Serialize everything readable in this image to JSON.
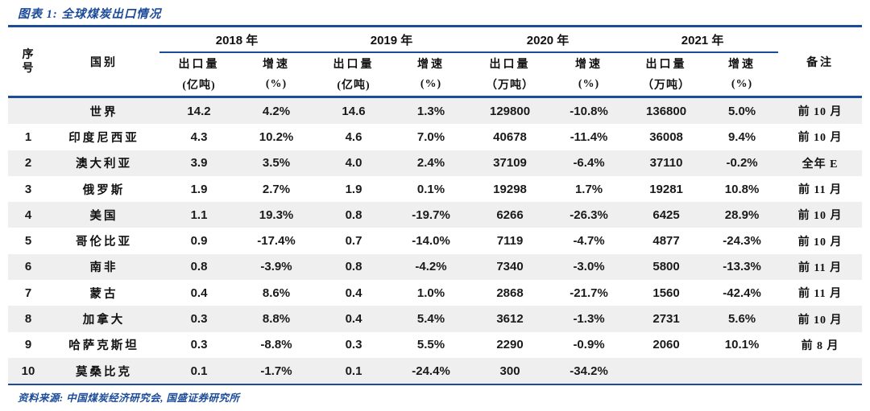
{
  "figure": {
    "title": "图表 1: 全球煤炭出口情况",
    "source": "资料来源: 中国煤炭经济研究会, 国盛证券研究所"
  },
  "colors": {
    "navy": "#1B4B99",
    "stripe": "#EFEFEF",
    "number_text": "#1A1A1A"
  },
  "chart_data": {
    "type": "table",
    "title": "图表 1: 全球煤炭出口情况",
    "header": {
      "seq_lines": [
        "序",
        "号"
      ],
      "country": "国别",
      "remark": "备注",
      "year_groups": [
        {
          "year": "2018 年",
          "sub": [
            "出口量",
            "增速"
          ],
          "units": [
            "(亿吨)",
            "(%)"
          ]
        },
        {
          "year": "2019 年",
          "sub": [
            "出口量",
            "增速"
          ],
          "units": [
            "(亿吨)",
            "(%)"
          ]
        },
        {
          "year": "2020 年",
          "sub": [
            "出口量",
            "增速"
          ],
          "units": [
            "（万吨）",
            "(%)"
          ]
        },
        {
          "year": "2021 年",
          "sub": [
            "出口量",
            "增速"
          ],
          "units": [
            "（万吨）",
            "(%)"
          ]
        }
      ]
    },
    "rows": [
      {
        "seq": "",
        "country": "世界",
        "values": [
          "14.2",
          "4.2%",
          "14.6",
          "1.3%",
          "129800",
          "-10.8%",
          "136800",
          "5.0%"
        ],
        "remark": "前 10 月"
      },
      {
        "seq": "1",
        "country": "印度尼西亚",
        "values": [
          "4.3",
          "10.2%",
          "4.6",
          "7.0%",
          "40678",
          "-11.4%",
          "36008",
          "9.4%"
        ],
        "remark": "前 10 月"
      },
      {
        "seq": "2",
        "country": "澳大利亚",
        "values": [
          "3.9",
          "3.5%",
          "4.0",
          "2.4%",
          "37109",
          "-6.4%",
          "37110",
          "-0.2%"
        ],
        "remark": "全年 E"
      },
      {
        "seq": "3",
        "country": "俄罗斯",
        "values": [
          "1.9",
          "2.7%",
          "1.9",
          "0.1%",
          "19298",
          "1.7%",
          "19281",
          "10.8%"
        ],
        "remark": "前 11 月"
      },
      {
        "seq": "4",
        "country": "美国",
        "values": [
          "1.1",
          "19.3%",
          "0.8",
          "-19.7%",
          "6266",
          "-26.3%",
          "6425",
          "28.9%"
        ],
        "remark": "前 10 月"
      },
      {
        "seq": "5",
        "country": "哥伦比亚",
        "values": [
          "0.9",
          "-17.4%",
          "0.7",
          "-14.0%",
          "7119",
          "-4.7%",
          "4877",
          "-24.3%"
        ],
        "remark": "前 10 月"
      },
      {
        "seq": "6",
        "country": "南非",
        "values": [
          "0.8",
          "-3.9%",
          "0.8",
          "-4.2%",
          "7340",
          "-3.0%",
          "5800",
          "-13.3%"
        ],
        "remark": "前 11 月"
      },
      {
        "seq": "7",
        "country": "蒙古",
        "values": [
          "0.4",
          "8.6%",
          "0.4",
          "1.0%",
          "2868",
          "-21.7%",
          "1560",
          "-42.4%"
        ],
        "remark": "前 11 月"
      },
      {
        "seq": "8",
        "country": "加拿大",
        "values": [
          "0.3",
          "8.8%",
          "0.4",
          "5.4%",
          "3612",
          "-1.3%",
          "2731",
          "5.6%"
        ],
        "remark": "前 10 月"
      },
      {
        "seq": "9",
        "country": "哈萨克斯坦",
        "values": [
          "0.3",
          "-8.8%",
          "0.3",
          "5.5%",
          "2290",
          "-0.9%",
          "2060",
          "10.1%"
        ],
        "remark": "前 8 月"
      },
      {
        "seq": "10",
        "country": "莫桑比克",
        "values": [
          "0.1",
          "-1.7%",
          "0.1",
          "-24.4%",
          "300",
          "-34.2%",
          "",
          ""
        ],
        "remark": ""
      }
    ]
  }
}
